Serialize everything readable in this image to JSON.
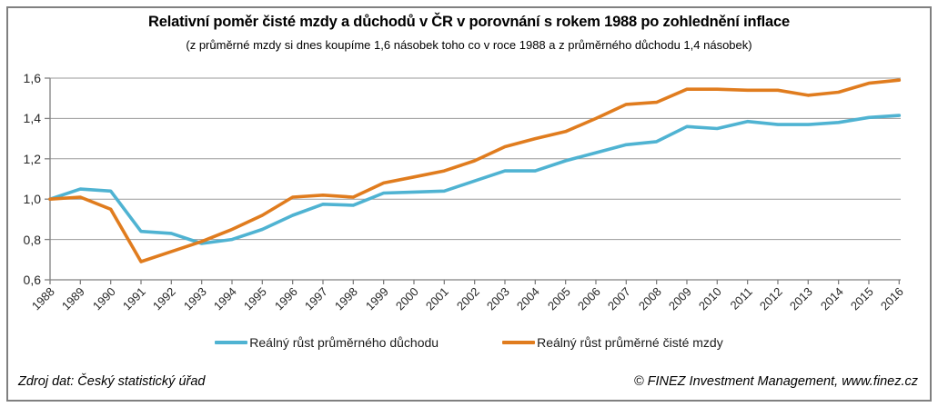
{
  "title": "Relativní poměr čisté mzdy a důchodů v ČR v porovnání s rokem 1988 po zohlednění inflace",
  "subtitle": "(z průměrné mzdy si dnes koupíme 1,6 násobek toho co v roce 1988 a z průměrného důchodu 1,4 násobek)",
  "legend": [
    {
      "label": "Reálný růst průměrného důchodu",
      "color": "#4FB3D2"
    },
    {
      "label": "Reálný růst průměrné čisté mzdy",
      "color": "#E07C1E"
    }
  ],
  "footer": {
    "source": "Zdroj dat: Český statistický úřad",
    "copyright": "© FINEZ Investment Management, www.finez.cz"
  },
  "colors": {
    "pension_line": "#4FB3D2",
    "wage_line": "#E07C1E",
    "gridline": "#9a9a9a",
    "axis": "#808080",
    "border": "#808080",
    "text": "#262626"
  },
  "chart_data": {
    "type": "line",
    "title": "Relativní poměr čisté mzdy a důchodů v ČR v porovnání s rokem 1988 po zohlednění inflace",
    "categories": [
      1988,
      1989,
      1990,
      1991,
      1992,
      1993,
      1994,
      1995,
      1996,
      1997,
      1998,
      1999,
      2000,
      2001,
      2002,
      2003,
      2004,
      2005,
      2006,
      2007,
      2008,
      2009,
      2010,
      2011,
      2012,
      2013,
      2014,
      2015,
      2016
    ],
    "series": [
      {
        "name": "Reálný růst průměrného důchodu",
        "color": "#4FB3D2",
        "values": [
          1.0,
          1.05,
          1.04,
          0.84,
          0.83,
          0.78,
          0.8,
          0.85,
          0.92,
          0.975,
          0.97,
          1.03,
          1.035,
          1.04,
          1.09,
          1.14,
          1.14,
          1.19,
          1.23,
          1.27,
          1.285,
          1.36,
          1.35,
          1.385,
          1.37,
          1.37,
          1.38,
          1.405,
          1.415
        ]
      },
      {
        "name": "Reálný růst průměrné čisté mzdy",
        "color": "#E07C1E",
        "values": [
          1.0,
          1.01,
          0.95,
          0.69,
          0.74,
          0.79,
          0.85,
          0.92,
          1.01,
          1.02,
          1.01,
          1.08,
          1.11,
          1.14,
          1.19,
          1.26,
          1.3,
          1.335,
          1.4,
          1.47,
          1.48,
          1.545,
          1.545,
          1.54,
          1.54,
          1.515,
          1.53,
          1.575,
          1.59
        ]
      }
    ],
    "xlabel": "",
    "ylabel": "",
    "ylim": [
      0.6,
      1.6
    ],
    "yticks": [
      0.6,
      0.8,
      1.0,
      1.2,
      1.4,
      1.6
    ],
    "ytick_labels": [
      "0,6",
      "0,8",
      "1,0",
      "1,2",
      "1,4",
      "1,6"
    ],
    "grid": true,
    "legend_position": "bottom"
  }
}
